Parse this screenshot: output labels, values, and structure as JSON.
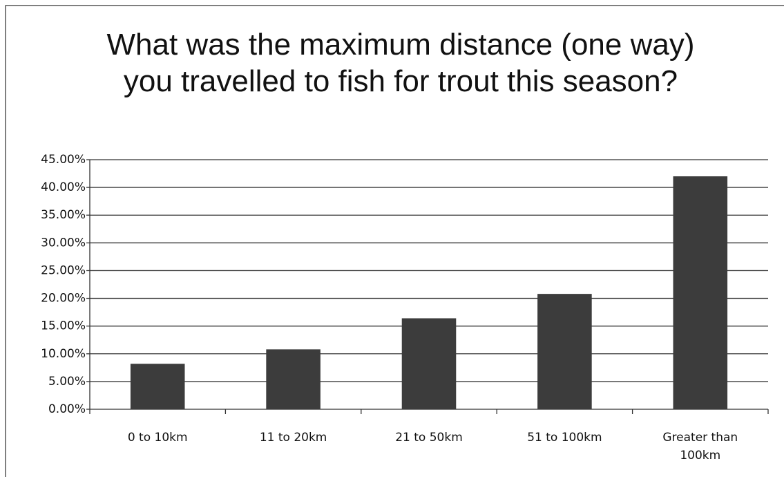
{
  "chart_data": {
    "type": "bar",
    "title": "What was the maximum distance (one way) you travelled to fish for trout this season?",
    "categories": [
      "0 to 10km",
      "11 to 20km",
      "21 to 50km",
      "51 to 100km",
      "Greater than 100km"
    ],
    "values": [
      8.2,
      10.8,
      16.4,
      20.8,
      42.0
    ],
    "color": "#3c3c3c",
    "ylim": [
      0,
      45
    ],
    "yticks": [
      {
        "value": 0,
        "label": "0.00%"
      },
      {
        "value": 5,
        "label": "5.00%"
      },
      {
        "value": 10,
        "label": "10.00%"
      },
      {
        "value": 15,
        "label": "15.00%"
      },
      {
        "value": 20,
        "label": "20.00%"
      },
      {
        "value": 25,
        "label": "25.00%"
      },
      {
        "value": 30,
        "label": "30.00%"
      },
      {
        "value": 35,
        "label": "35.00%"
      },
      {
        "value": 40,
        "label": "40.00%"
      },
      {
        "value": 45,
        "label": "45.00%"
      }
    ],
    "grid": true
  }
}
